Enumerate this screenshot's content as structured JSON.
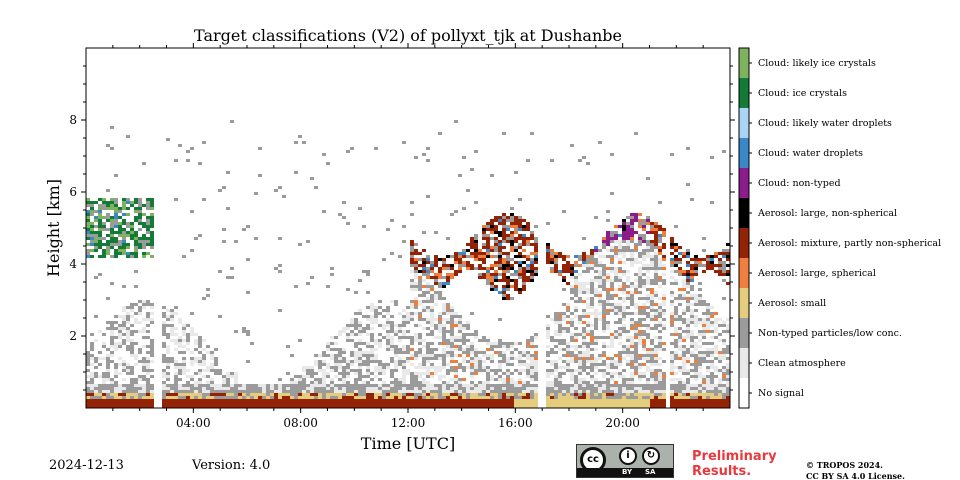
{
  "chart_data": {
    "type": "heatmap",
    "title": "Target classifications (V2) of pollyxt_tjk at Dushanbe",
    "xlabel": "Time [UTC]",
    "ylabel": "Height [km]",
    "xlim_hours": [
      0,
      24
    ],
    "ylim_km": [
      0,
      10
    ],
    "x_ticks": [
      {
        "hour": 4,
        "label": "04:00"
      },
      {
        "hour": 8,
        "label": "08:00"
      },
      {
        "hour": 12,
        "label": "12:00"
      },
      {
        "hour": 16,
        "label": "16:00"
      },
      {
        "hour": 20,
        "label": "20:00"
      }
    ],
    "y_ticks": [
      {
        "km": 2,
        "label": "2"
      },
      {
        "km": 4,
        "label": "4"
      },
      {
        "km": 6,
        "label": "6"
      },
      {
        "km": 8,
        "label": "8"
      }
    ],
    "categories": [
      {
        "label": "No signal",
        "color": "#ffffff"
      },
      {
        "label": "Clean atmosphere",
        "color": "#e9e9e9"
      },
      {
        "label": "Non-typed particles/low conc.",
        "color": "#9b9b9b"
      },
      {
        "label": "Aerosol: small",
        "color": "#e4cd7c"
      },
      {
        "label": "Aerosol: large, spherical",
        "color": "#ee7f3d"
      },
      {
        "label": "Aerosol: mixture, partly non-spherical",
        "color": "#942305"
      },
      {
        "label": "Aerosol: large, non-spherical",
        "color": "#000000"
      },
      {
        "label": "Cloud: non-typed",
        "color": "#8c1c8c"
      },
      {
        "label": "Cloud: water droplets",
        "color": "#3a88c8"
      },
      {
        "label": "Cloud: likely water droplets",
        "color": "#a9d4f5"
      },
      {
        "label": "Cloud: ice crystals",
        "color": "#137a38"
      },
      {
        "label": "Cloud: likely ice crystals",
        "color": "#7fb25f"
      }
    ],
    "no_data_hours": [
      2.6,
      16.9,
      21.6
    ]
  },
  "footer": {
    "date": "2024-12-13",
    "version": "Version: 4.0",
    "preliminary_line1": "Preliminary",
    "preliminary_line2": "Results.",
    "copyright_line1": "© TROPOS 2024.",
    "copyright_line2": "CC BY SA 4.0 License.",
    "license_badge": {
      "cc": "cc",
      "by": "BY",
      "sa": "SA"
    }
  }
}
